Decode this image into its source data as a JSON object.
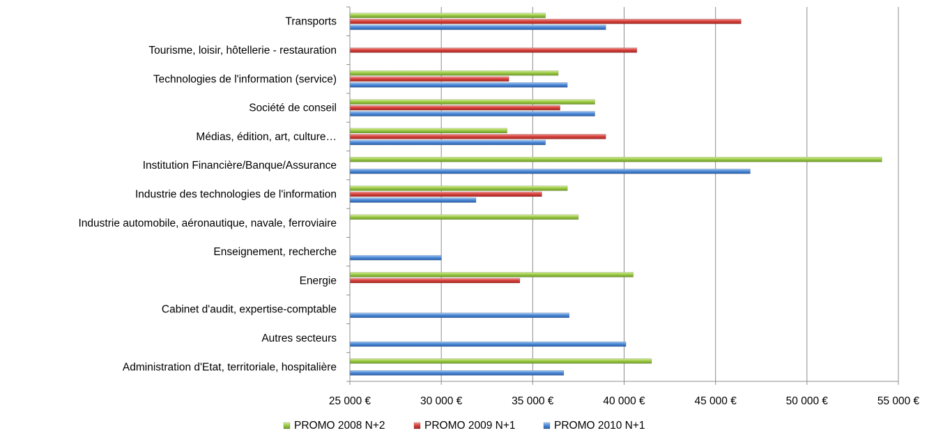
{
  "chart_data": {
    "type": "bar",
    "orientation": "horizontal",
    "categories": [
      "Transports",
      "Tourisme, loisir, hôtellerie - restauration",
      "Technologies de l'information (service)",
      "Société de conseil",
      "Médias, édition, art, culture…",
      "Institution Financière/Banque/Assurance",
      "Industrie des technologies de l'information",
      "Industrie automobile, aéronautique, navale, ferroviaire",
      "Enseignement, recherche",
      "Energie",
      "Cabinet d'audit, expertise-comptable",
      "Autres secteurs",
      "Administration d'Etat, territoriale, hospitalière"
    ],
    "series": [
      {
        "name": "PROMO 2008 N+2",
        "color": "#8fbf3c",
        "values": [
          35700,
          null,
          36400,
          38400,
          33600,
          54100,
          36900,
          37500,
          null,
          40500,
          null,
          null,
          41500
        ]
      },
      {
        "name": "PROMO 2009 N+1",
        "color": "#d2403c",
        "values": [
          46400,
          40700,
          33700,
          36500,
          39000,
          null,
          35500,
          null,
          null,
          34300,
          null,
          null,
          null
        ]
      },
      {
        "name": "PROMO 2010 N+1",
        "color": "#4a86d4",
        "values": [
          39000,
          null,
          36900,
          38400,
          35700,
          46900,
          31900,
          null,
          30000,
          null,
          37000,
          40100,
          36700
        ]
      }
    ],
    "xlim": [
      25000,
      55000
    ],
    "ticks": [
      25000,
      30000,
      35000,
      40000,
      45000,
      50000,
      55000
    ],
    "tick_labels": [
      "25 000 €",
      "30 000 €",
      "35 000 €",
      "40 000 €",
      "45 000 €",
      "50 000 €",
      "55 000 €"
    ],
    "grid": true,
    "legend_position": "bottom",
    "title": "",
    "xlabel": "",
    "ylabel": ""
  }
}
